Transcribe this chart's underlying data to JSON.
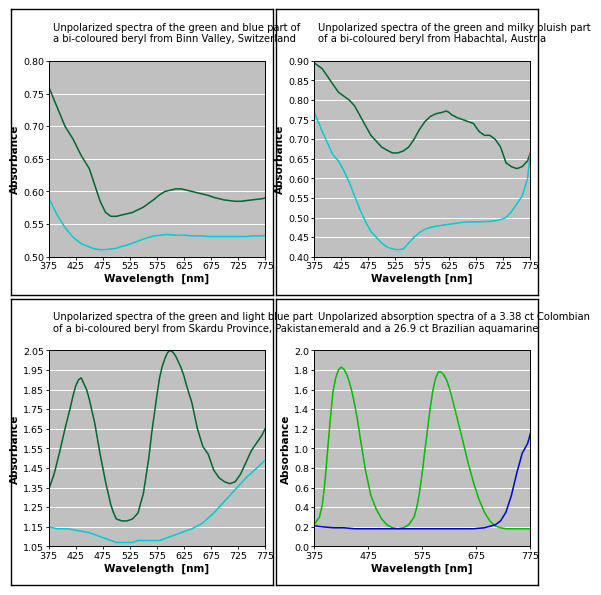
{
  "plots": [
    {
      "title": "Unpolarized spectra of the green and blue part of\na bi-coloured beryl from Binn Valley, Switzerland",
      "xlabel": "Wavelength  [nm]",
      "ylabel": "Absorbance",
      "xlim": [
        375,
        775
      ],
      "ylim": [
        0.5,
        0.8
      ],
      "yticks": [
        0.5,
        0.55,
        0.6,
        0.65,
        0.7,
        0.75,
        0.8
      ],
      "xticks": [
        375,
        425,
        475,
        525,
        575,
        625,
        675,
        725,
        775
      ],
      "green_x": [
        375,
        390,
        405,
        420,
        435,
        450,
        460,
        470,
        480,
        490,
        500,
        510,
        520,
        530,
        540,
        550,
        560,
        570,
        580,
        590,
        600,
        610,
        620,
        630,
        640,
        650,
        660,
        670,
        680,
        690,
        700,
        710,
        720,
        730,
        740,
        750,
        760,
        770,
        775
      ],
      "green_y": [
        0.76,
        0.73,
        0.7,
        0.68,
        0.655,
        0.635,
        0.61,
        0.585,
        0.568,
        0.562,
        0.562,
        0.564,
        0.566,
        0.568,
        0.572,
        0.576,
        0.582,
        0.588,
        0.595,
        0.6,
        0.602,
        0.604,
        0.604,
        0.602,
        0.6,
        0.598,
        0.596,
        0.594,
        0.591,
        0.589,
        0.587,
        0.586,
        0.585,
        0.585,
        0.586,
        0.587,
        0.588,
        0.589,
        0.59
      ],
      "cyan_x": [
        375,
        390,
        405,
        420,
        435,
        450,
        460,
        470,
        480,
        490,
        500,
        510,
        520,
        530,
        540,
        550,
        560,
        570,
        580,
        590,
        600,
        610,
        620,
        630,
        640,
        650,
        660,
        670,
        680,
        690,
        700,
        710,
        720,
        730,
        740,
        750,
        760,
        770,
        775
      ],
      "cyan_y": [
        0.59,
        0.565,
        0.545,
        0.53,
        0.52,
        0.515,
        0.512,
        0.511,
        0.511,
        0.512,
        0.513,
        0.516,
        0.518,
        0.521,
        0.524,
        0.527,
        0.53,
        0.532,
        0.533,
        0.534,
        0.534,
        0.533,
        0.533,
        0.533,
        0.532,
        0.532,
        0.532,
        0.531,
        0.531,
        0.531,
        0.531,
        0.531,
        0.531,
        0.531,
        0.531,
        0.532,
        0.532,
        0.532,
        0.533
      ],
      "line1_color": "#006633",
      "line2_color": "#00CCCC",
      "line2_key": "cyan"
    },
    {
      "title": "Unpolarized spectra of the green and milky bluish part\nof a bi-coloured beryl from Habachtal, Austria",
      "xlabel": "Wavelength [nm]",
      "ylabel": "Absorbance",
      "xlim": [
        375,
        775
      ],
      "ylim": [
        0.4,
        0.9
      ],
      "yticks": [
        0.4,
        0.45,
        0.5,
        0.55,
        0.6,
        0.65,
        0.7,
        0.75,
        0.8,
        0.85,
        0.9
      ],
      "xticks": [
        375,
        425,
        475,
        525,
        575,
        625,
        675,
        725,
        775
      ],
      "green_x": [
        375,
        390,
        400,
        410,
        420,
        430,
        440,
        450,
        460,
        470,
        480,
        490,
        500,
        510,
        520,
        530,
        540,
        550,
        560,
        570,
        580,
        590,
        600,
        610,
        615,
        620,
        625,
        630,
        640,
        650,
        660,
        670,
        680,
        690,
        700,
        710,
        720,
        730,
        740,
        750,
        760,
        770,
        775
      ],
      "green_y": [
        0.895,
        0.88,
        0.86,
        0.84,
        0.82,
        0.81,
        0.8,
        0.785,
        0.76,
        0.735,
        0.71,
        0.695,
        0.68,
        0.672,
        0.665,
        0.665,
        0.67,
        0.68,
        0.7,
        0.725,
        0.745,
        0.758,
        0.765,
        0.768,
        0.77,
        0.772,
        0.768,
        0.762,
        0.755,
        0.75,
        0.745,
        0.74,
        0.72,
        0.71,
        0.71,
        0.7,
        0.68,
        0.64,
        0.63,
        0.625,
        0.63,
        0.645,
        0.665
      ],
      "cyan_x": [
        375,
        390,
        400,
        410,
        420,
        430,
        440,
        450,
        460,
        470,
        480,
        490,
        500,
        510,
        520,
        530,
        540,
        550,
        560,
        570,
        580,
        590,
        600,
        610,
        620,
        630,
        640,
        650,
        660,
        670,
        680,
        690,
        700,
        710,
        720,
        730,
        740,
        750,
        760,
        770,
        775
      ],
      "cyan_y": [
        0.77,
        0.72,
        0.69,
        0.66,
        0.645,
        0.62,
        0.59,
        0.555,
        0.52,
        0.49,
        0.465,
        0.45,
        0.435,
        0.425,
        0.42,
        0.418,
        0.42,
        0.435,
        0.45,
        0.462,
        0.47,
        0.475,
        0.478,
        0.48,
        0.482,
        0.484,
        0.486,
        0.488,
        0.489,
        0.489,
        0.489,
        0.49,
        0.49,
        0.492,
        0.495,
        0.5,
        0.515,
        0.535,
        0.555,
        0.6,
        0.665
      ],
      "line1_color": "#006633",
      "line2_color": "#00CCCC",
      "line2_key": "cyan"
    },
    {
      "title": "Unpolarized spectra of the green and light blue part\nof a bi-coloured beryl from Skardu Province, Pakistan",
      "xlabel": "Wavelength  [nm]",
      "ylabel": "Absorbance",
      "xlim": [
        375,
        775
      ],
      "ylim": [
        1.05,
        2.05
      ],
      "yticks": [
        1.05,
        1.15,
        1.25,
        1.35,
        1.45,
        1.55,
        1.65,
        1.75,
        1.85,
        1.95,
        2.05
      ],
      "xticks": [
        375,
        425,
        475,
        525,
        575,
        625,
        675,
        725,
        775
      ],
      "green_x": [
        375,
        385,
        395,
        405,
        415,
        420,
        425,
        430,
        435,
        440,
        445,
        450,
        460,
        470,
        480,
        490,
        495,
        500,
        510,
        520,
        530,
        540,
        550,
        560,
        565,
        570,
        575,
        580,
        585,
        590,
        595,
        600,
        605,
        610,
        620,
        625,
        630,
        640,
        650,
        660,
        665,
        670,
        675,
        680,
        690,
        700,
        710,
        720,
        730,
        740,
        750,
        760,
        770,
        775
      ],
      "green_y": [
        1.34,
        1.42,
        1.53,
        1.65,
        1.76,
        1.82,
        1.87,
        1.9,
        1.91,
        1.88,
        1.85,
        1.8,
        1.68,
        1.52,
        1.38,
        1.26,
        1.22,
        1.19,
        1.18,
        1.18,
        1.19,
        1.22,
        1.32,
        1.5,
        1.62,
        1.72,
        1.82,
        1.91,
        1.97,
        2.01,
        2.04,
        2.05,
        2.04,
        2.02,
        1.96,
        1.92,
        1.87,
        1.78,
        1.65,
        1.56,
        1.54,
        1.52,
        1.48,
        1.44,
        1.4,
        1.38,
        1.37,
        1.38,
        1.42,
        1.48,
        1.54,
        1.58,
        1.62,
        1.65
      ],
      "cyan_x": [
        375,
        390,
        410,
        430,
        450,
        470,
        490,
        500,
        510,
        520,
        530,
        540,
        550,
        560,
        570,
        580,
        590,
        600,
        620,
        640,
        660,
        680,
        700,
        720,
        740,
        760,
        775
      ],
      "cyan_y": [
        1.15,
        1.14,
        1.14,
        1.13,
        1.12,
        1.1,
        1.08,
        1.07,
        1.07,
        1.07,
        1.07,
        1.08,
        1.08,
        1.08,
        1.08,
        1.08,
        1.09,
        1.1,
        1.12,
        1.14,
        1.17,
        1.22,
        1.28,
        1.34,
        1.4,
        1.45,
        1.49
      ],
      "line1_color": "#006633",
      "line2_color": "#00CCCC",
      "line2_key": "cyan"
    },
    {
      "title": "Unpolarized absorption spectra of a 3.38 ct Colombian\nemerald and a 26.9 ct Brazilian aquamarine",
      "xlabel": "Wavelength [nm]",
      "ylabel": "Absorbance",
      "xlim": [
        375,
        775
      ],
      "ylim": [
        0.0,
        2.0
      ],
      "yticks": [
        0.0,
        0.2,
        0.4,
        0.6,
        0.8,
        1.0,
        1.2,
        1.4,
        1.6,
        1.8,
        2.0
      ],
      "xticks": [
        375,
        475,
        575,
        675,
        775
      ],
      "green_x": [
        375,
        385,
        390,
        395,
        400,
        405,
        410,
        415,
        420,
        425,
        430,
        435,
        440,
        445,
        450,
        455,
        460,
        465,
        470,
        475,
        480,
        490,
        500,
        510,
        520,
        530,
        540,
        550,
        560,
        565,
        570,
        575,
        580,
        585,
        590,
        595,
        600,
        605,
        610,
        615,
        620,
        625,
        630,
        640,
        650,
        660,
        670,
        680,
        690,
        700,
        710,
        720,
        730,
        740,
        750,
        760,
        770,
        775
      ],
      "green_y": [
        0.22,
        0.3,
        0.42,
        0.65,
        0.98,
        1.3,
        1.58,
        1.72,
        1.8,
        1.83,
        1.81,
        1.76,
        1.68,
        1.58,
        1.45,
        1.3,
        1.12,
        0.95,
        0.78,
        0.65,
        0.52,
        0.38,
        0.28,
        0.22,
        0.19,
        0.18,
        0.19,
        0.22,
        0.3,
        0.4,
        0.55,
        0.75,
        0.98,
        1.2,
        1.42,
        1.6,
        1.72,
        1.78,
        1.78,
        1.75,
        1.7,
        1.62,
        1.52,
        1.3,
        1.08,
        0.85,
        0.65,
        0.48,
        0.35,
        0.26,
        0.21,
        0.19,
        0.18,
        0.18,
        0.18,
        0.18,
        0.18,
        0.18
      ],
      "cyan_x": [
        375,
        390,
        410,
        430,
        450,
        470,
        490,
        510,
        530,
        550,
        570,
        590,
        610,
        630,
        650,
        670,
        690,
        710,
        720,
        730,
        740,
        750,
        760,
        770,
        775
      ],
      "cyan_y": [
        0.21,
        0.2,
        0.19,
        0.19,
        0.18,
        0.18,
        0.18,
        0.18,
        0.18,
        0.18,
        0.18,
        0.18,
        0.18,
        0.18,
        0.18,
        0.18,
        0.19,
        0.22,
        0.26,
        0.35,
        0.52,
        0.75,
        0.95,
        1.05,
        1.15
      ],
      "line1_color": "#00BB00",
      "line2_color": "#0000CC",
      "line2_key": "blue"
    }
  ],
  "plot_bg_color": "#C0C0C0",
  "panel_bg_color": "#FFFFFF",
  "outer_bg": "#FFFFFF",
  "title_fontsize": 7.2,
  "label_fontsize": 7.5,
  "tick_fontsize": 6.8,
  "line_width": 1.1,
  "grid_color": "#FFFFFF",
  "grid_lw": 0.7
}
